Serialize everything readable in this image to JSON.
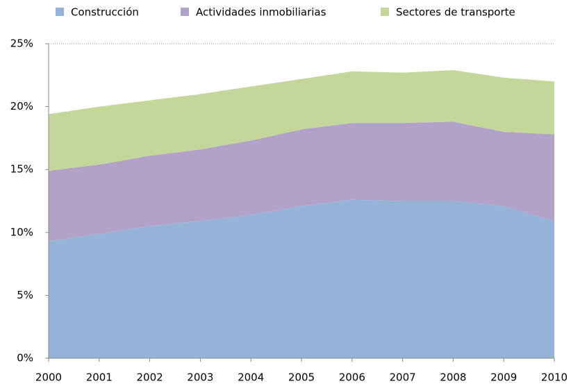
{
  "chart_data": {
    "type": "stacked_area",
    "x": [
      2000,
      2001,
      2002,
      2003,
      2004,
      2005,
      2006,
      2007,
      2008,
      2009,
      2010
    ],
    "series": [
      {
        "name": "Construcción",
        "color": "#95b3d7",
        "values": [
          9.3,
          9.9,
          10.5,
          10.9,
          11.4,
          12.1,
          12.6,
          12.5,
          12.5,
          12.1,
          10.9
        ]
      },
      {
        "name": "Actividades inmobiliarias",
        "color": "#b3a2c7",
        "values": [
          5.6,
          5.5,
          5.6,
          5.7,
          5.9,
          6.1,
          6.1,
          6.2,
          6.3,
          5.9,
          6.9
        ]
      },
      {
        "name": "Sectores de transporte",
        "color": "#c4d79b",
        "values": [
          4.5,
          4.6,
          4.4,
          4.4,
          4.3,
          4.0,
          4.1,
          4.0,
          4.1,
          4.3,
          4.2
        ]
      }
    ],
    "xlim": [
      2000,
      2010
    ],
    "xticks": [
      2000,
      2001,
      2002,
      2003,
      2004,
      2005,
      2006,
      2007,
      2008,
      2009,
      2010
    ],
    "ylim": [
      0,
      25
    ],
    "yticks": [
      {
        "value": 0,
        "label": "0%"
      },
      {
        "value": 5,
        "label": "5%"
      },
      {
        "value": 10,
        "label": "10%"
      },
      {
        "value": 15,
        "label": "15%"
      },
      {
        "value": 20,
        "label": "20%"
      },
      {
        "value": 25,
        "label": "25%"
      }
    ],
    "legend": "top"
  }
}
